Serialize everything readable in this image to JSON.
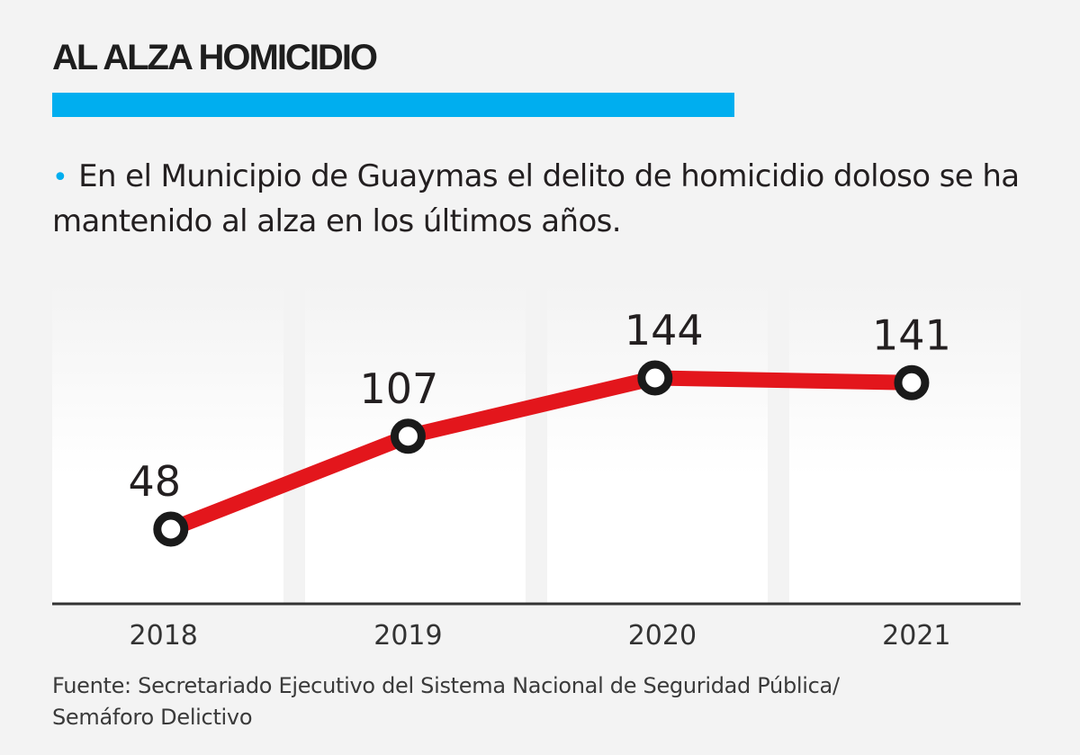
{
  "header": {
    "title": "AL ALZA HOMICIDIO",
    "subtitle": "En el Municipio de Guaymas el delito de homicidio doloso se ha mantenido al alza en los últimos años."
  },
  "footer": {
    "source_line1": "Fuente: Secretariado Ejecutivo del Sistema Nacional de Seguridad Pública/",
    "source_line2": "Semáforo Delictivo"
  },
  "colors": {
    "accent": "#00aeef",
    "line": "#e3161c",
    "marker": "#1a1a1a",
    "background": "#f3f3f3"
  },
  "chart_data": {
    "type": "line",
    "categories": [
      "2018",
      "2019",
      "2020",
      "2021"
    ],
    "values": [
      48,
      107,
      144,
      141
    ],
    "title": "AL ALZA HOMICIDIO",
    "xlabel": "",
    "ylabel": "",
    "ylim": [
      0,
      168
    ],
    "grid": false,
    "legend": "none"
  }
}
